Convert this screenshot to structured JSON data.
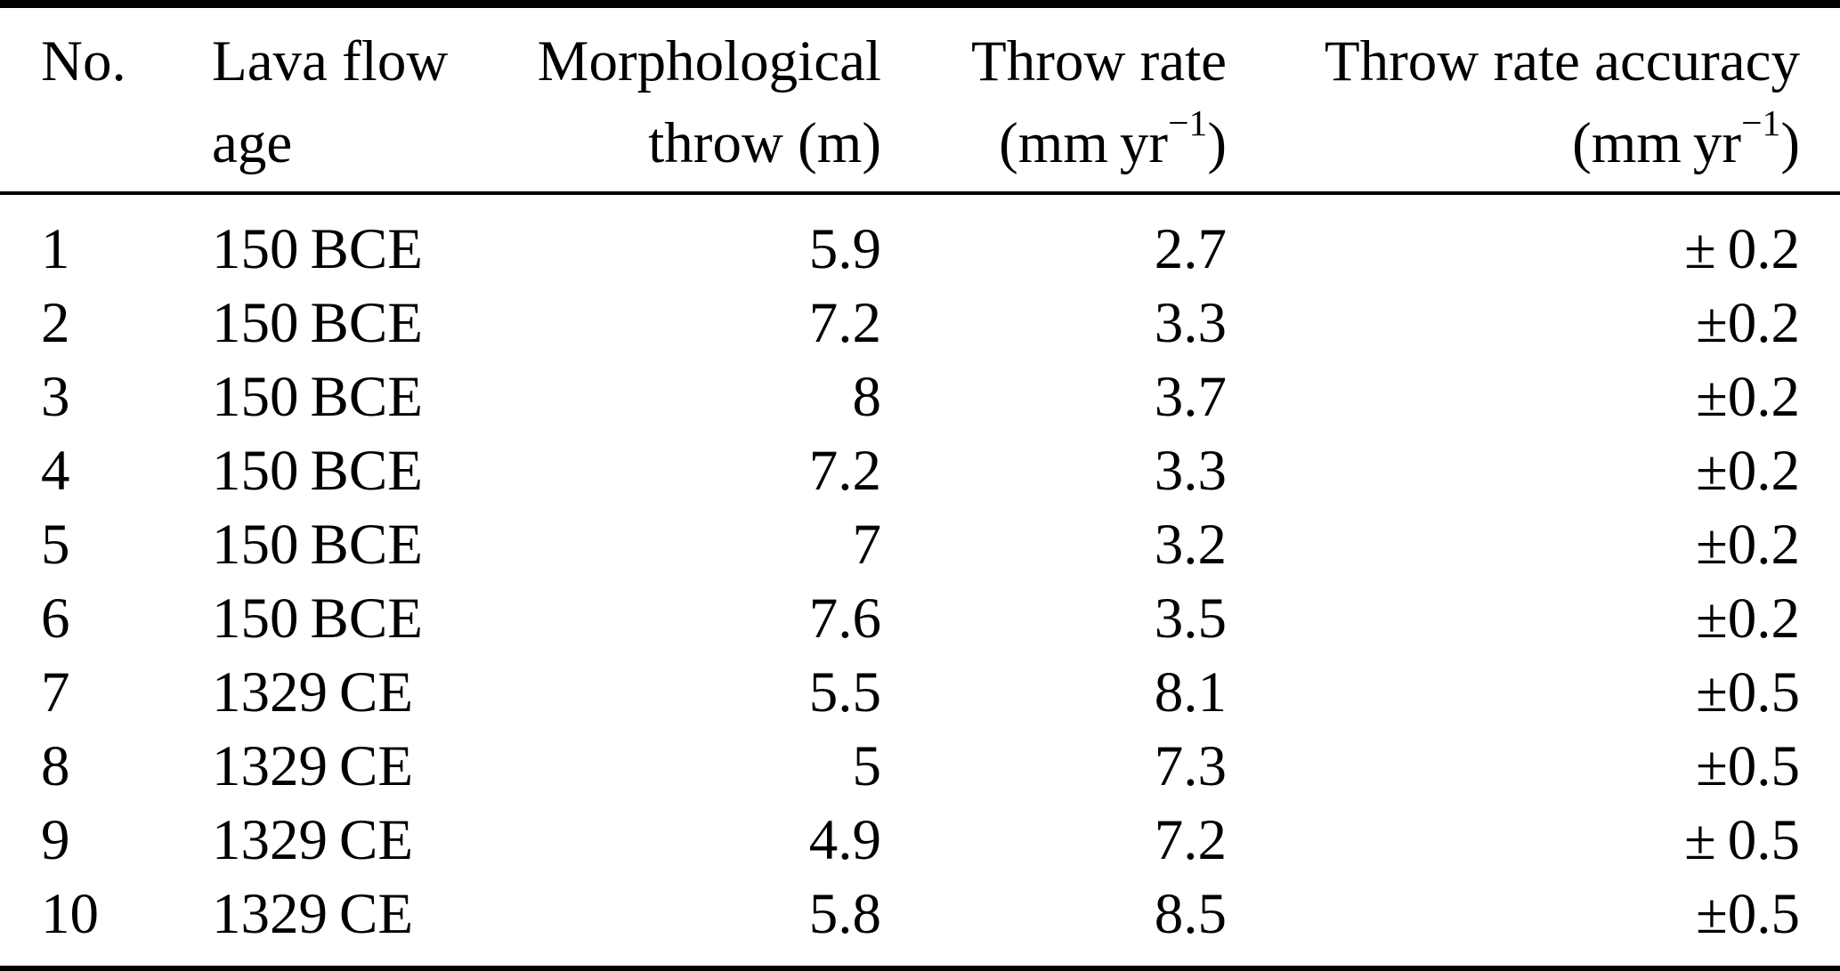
{
  "table": {
    "colors": {
      "text": "#000000",
      "background": "#ffffff",
      "rule": "#000000"
    },
    "columns": [
      {
        "label1": "No."
      },
      {
        "label1": "Lava flow",
        "label2": "age"
      },
      {
        "label1": "Morphological",
        "label2": "throw (m)"
      },
      {
        "label1": "Throw rate",
        "unit": {
          "prefix": "(mm yr",
          "sup": "−1",
          "close": ")"
        }
      },
      {
        "label1": "Throw rate accuracy",
        "unit": {
          "prefix": "(mm yr",
          "sup": "−1",
          "close": ")"
        }
      }
    ],
    "rows": [
      {
        "no": "1",
        "age": "150 BCE",
        "throw": "5.9",
        "rate": "2.7",
        "accuracy": "± 0.2"
      },
      {
        "no": "2",
        "age": "150 BCE",
        "throw": "7.2",
        "rate": "3.3",
        "accuracy": "±0.2"
      },
      {
        "no": "3",
        "age": "150 BCE",
        "throw": "8",
        "rate": "3.7",
        "accuracy": "±0.2"
      },
      {
        "no": "4",
        "age": "150 BCE",
        "throw": "7.2",
        "rate": "3.3",
        "accuracy": "±0.2"
      },
      {
        "no": "5",
        "age": "150 BCE",
        "throw": "7",
        "rate": "3.2",
        "accuracy": "±0.2"
      },
      {
        "no": "6",
        "age": "150 BCE",
        "throw": "7.6",
        "rate": "3.5",
        "accuracy": "±0.2"
      },
      {
        "no": "7",
        "age": "1329 CE",
        "throw": "5.5",
        "rate": "8.1",
        "accuracy": "±0.5"
      },
      {
        "no": "8",
        "age": "1329 CE",
        "throw": "5",
        "rate": "7.3",
        "accuracy": "±0.5"
      },
      {
        "no": "9",
        "age": "1329 CE",
        "throw": "4.9",
        "rate": "7.2",
        "accuracy": "± 0.5"
      },
      {
        "no": "10",
        "age": "1329 CE",
        "throw": "5.8",
        "rate": "8.5",
        "accuracy": "±0.5"
      }
    ]
  }
}
